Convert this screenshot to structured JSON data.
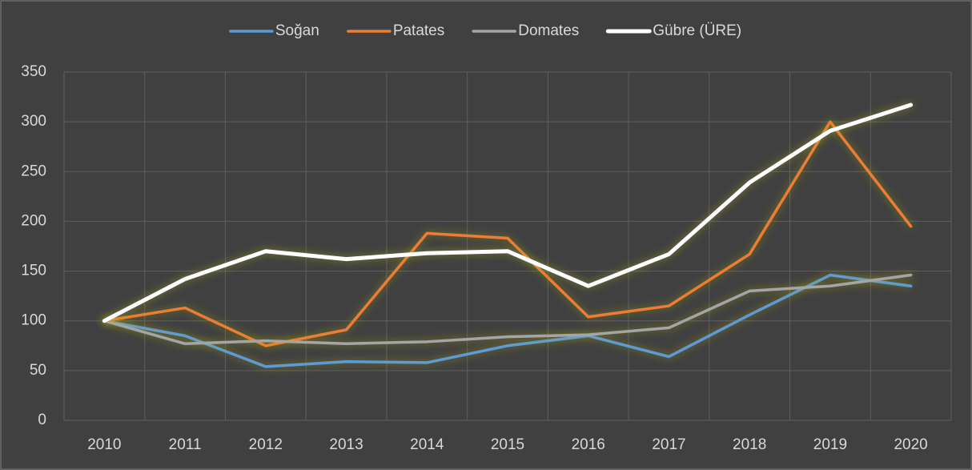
{
  "chart_data": {
    "type": "line",
    "categories": [
      "2010",
      "2011",
      "2012",
      "2013",
      "2014",
      "2015",
      "2016",
      "2017",
      "2018",
      "2019",
      "2020"
    ],
    "series": [
      {
        "name": "Soğan",
        "color": "#5b9bd5",
        "values": [
          100,
          85,
          54,
          59,
          58,
          75,
          85,
          64,
          106,
          146,
          135
        ]
      },
      {
        "name": "Patates",
        "color": "#ed7d31",
        "values": [
          100,
          113,
          75,
          91,
          188,
          183,
          104,
          115,
          167,
          300,
          195
        ]
      },
      {
        "name": "Domates",
        "color": "#a5a5a5",
        "values": [
          100,
          77,
          80,
          77,
          79,
          84,
          86,
          93,
          130,
          135,
          146
        ]
      },
      {
        "name": "Gübre (ÜRE)",
        "color": "#ffffff",
        "values": [
          100,
          142,
          170,
          162,
          168,
          170,
          135,
          167,
          239,
          291,
          317
        ]
      }
    ],
    "ylim": [
      0,
      350
    ],
    "yticks": [
      0,
      50,
      100,
      150,
      200,
      250,
      300,
      350
    ],
    "grid": true,
    "legend": "top"
  }
}
